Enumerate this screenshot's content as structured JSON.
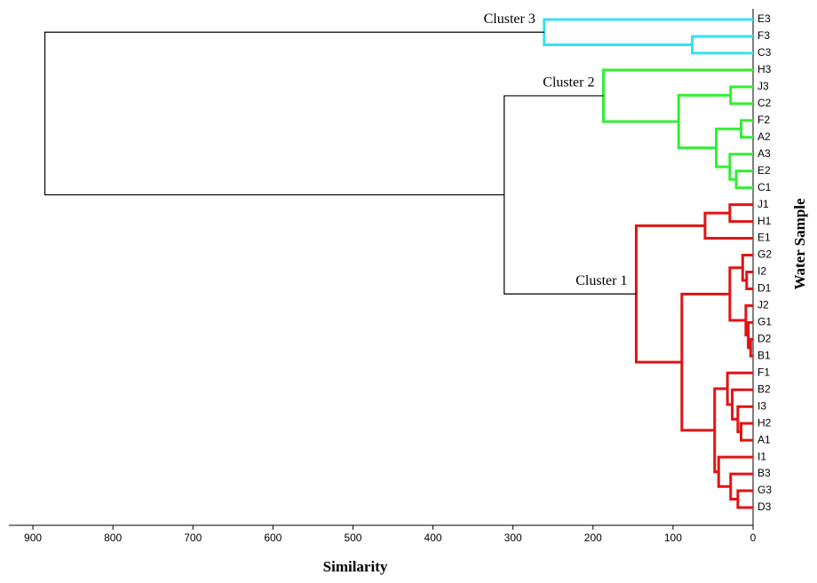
{
  "chart_data": {
    "type": "dendrogram",
    "x_label": "Similarity",
    "y_label": "Water Sample",
    "xlim": [
      930,
      0
    ],
    "xticks": [
      900,
      800,
      700,
      600,
      500,
      400,
      300,
      200,
      100,
      0
    ],
    "link_color": "#000000",
    "clusters": [
      {
        "name": "Cluster 3",
        "color": "#33e3f0"
      },
      {
        "name": "Cluster 2",
        "color": "#33ee33"
      },
      {
        "name": "Cluster 1",
        "color": "#e01414"
      }
    ],
    "leaves": [
      "E3",
      "F3",
      "C3",
      "H3",
      "J3",
      "C2",
      "F2",
      "A2",
      "A3",
      "E2",
      "C1",
      "J1",
      "H1",
      "E1",
      "G2",
      "I2",
      "D1",
      "J2",
      "G1",
      "D2",
      "B1",
      "F1",
      "B2",
      "I3",
      "H2",
      "A1",
      "I1",
      "B3",
      "G3",
      "D3"
    ],
    "merges": [
      {
        "children": [
          1,
          2
        ],
        "height": 76,
        "cluster": 0
      },
      {
        "children": [
          0,
          30
        ],
        "height": 261,
        "cluster": 0
      },
      {
        "children": [
          9,
          10
        ],
        "height": 21,
        "cluster": 1
      },
      {
        "children": [
          8,
          32
        ],
        "height": 29,
        "cluster": 1
      },
      {
        "children": [
          6,
          7
        ],
        "height": 15,
        "cluster": 1
      },
      {
        "children": [
          34,
          33
        ],
        "height": 46,
        "cluster": 1
      },
      {
        "children": [
          4,
          5
        ],
        "height": 28,
        "cluster": 1
      },
      {
        "children": [
          36,
          35
        ],
        "height": 93,
        "cluster": 1
      },
      {
        "children": [
          3,
          37
        ],
        "height": 187,
        "cluster": 1
      },
      {
        "children": [
          11,
          12
        ],
        "height": 29,
        "cluster": 2
      },
      {
        "children": [
          39,
          13
        ],
        "height": 60,
        "cluster": 2
      },
      {
        "children": [
          15,
          16
        ],
        "height": 8,
        "cluster": 2
      },
      {
        "children": [
          14,
          41
        ],
        "height": 13,
        "cluster": 2
      },
      {
        "children": [
          19,
          20
        ],
        "height": 3,
        "cluster": 2
      },
      {
        "children": [
          18,
          43
        ],
        "height": 6,
        "cluster": 2
      },
      {
        "children": [
          17,
          44
        ],
        "height": 9,
        "cluster": 2
      },
      {
        "children": [
          42,
          45
        ],
        "height": 29,
        "cluster": 2
      },
      {
        "children": [
          24,
          25
        ],
        "height": 15,
        "cluster": 2
      },
      {
        "children": [
          23,
          47
        ],
        "height": 19,
        "cluster": 2
      },
      {
        "children": [
          22,
          48
        ],
        "height": 26,
        "cluster": 2
      },
      {
        "children": [
          21,
          49
        ],
        "height": 32,
        "cluster": 2
      },
      {
        "children": [
          28,
          29
        ],
        "height": 19,
        "cluster": 2
      },
      {
        "children": [
          27,
          51
        ],
        "height": 28,
        "cluster": 2
      },
      {
        "children": [
          26,
          52
        ],
        "height": 43,
        "cluster": 2
      },
      {
        "children": [
          50,
          53
        ],
        "height": 48,
        "cluster": 2
      },
      {
        "children": [
          46,
          54
        ],
        "height": 89,
        "cluster": 2
      },
      {
        "children": [
          40,
          55
        ],
        "height": 146,
        "cluster": 2
      },
      {
        "children": [
          38,
          56
        ],
        "height": 311
      },
      {
        "children": [
          31,
          57
        ],
        "height": 885
      }
    ]
  }
}
